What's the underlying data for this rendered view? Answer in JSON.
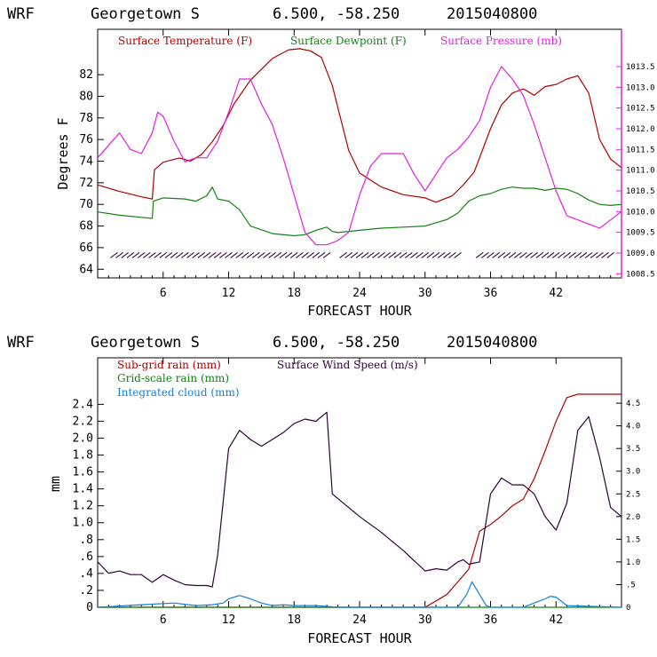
{
  "chart_data": [
    {
      "type": "line",
      "title_parts": [
        "WRF",
        "Georgetown S",
        "6.500, -58.250",
        "2015040800"
      ],
      "xlabel": "FORECAST HOUR",
      "ylabel": "Degrees F",
      "xlim": [
        0,
        48
      ],
      "xticks": [
        6,
        12,
        18,
        24,
        30,
        36,
        42
      ],
      "ylim": [
        63.2,
        86.2
      ],
      "yticks": [
        64,
        66,
        68,
        70,
        72,
        74,
        76,
        78,
        80,
        82
      ],
      "y2lim": [
        1008.4,
        1014.4
      ],
      "y2ticks": [
        1008.5,
        1009.0,
        1009.5,
        1010.0,
        1010.5,
        1011.0,
        1011.5,
        1012.0,
        1012.5,
        1013.0,
        1013.5
      ],
      "y2ticklabels": [
        "1008.5",
        "1009.0",
        "1009.5",
        "1010.0",
        "1010.5",
        "1011.0",
        "1011.5",
        "1012.0",
        "1012.5",
        "1013.0",
        "1013.5"
      ],
      "series": [
        {
          "name": "Surface Temperature (F)",
          "axis": "left",
          "color": "#b00000",
          "x": [
            0,
            2,
            4,
            5,
            5.2,
            6,
            7.5,
            8.5,
            9.5,
            10.5,
            11.5,
            12.5,
            14,
            16,
            17.5,
            18.5,
            19.5,
            20.5,
            21.5,
            22,
            23,
            24,
            26,
            28,
            30,
            31,
            32.5,
            33.5,
            34.5,
            36,
            37,
            38,
            39,
            40,
            41,
            42,
            43,
            44,
            45,
            46,
            47,
            48
          ],
          "y": [
            71.8,
            71.2,
            70.7,
            70.5,
            73.2,
            73.9,
            74.3,
            74.0,
            74.6,
            75.8,
            77.3,
            79.3,
            81.5,
            83.5,
            84.3,
            84.4,
            84.2,
            83.6,
            81.0,
            79.0,
            75.0,
            72.9,
            71.6,
            70.9,
            70.6,
            70.2,
            70.8,
            71.8,
            73.0,
            77.0,
            79.2,
            80.3,
            80.7,
            80.1,
            80.9,
            81.1,
            81.6,
            81.9,
            80.3,
            76.0,
            74.2,
            73.4
          ]
        },
        {
          "name": "Surface Dewpoint (F)",
          "axis": "left",
          "color": "#128212",
          "x": [
            0,
            2,
            4,
            5,
            5.1,
            6,
            8,
            9,
            10,
            10.5,
            11,
            12,
            13,
            14,
            16,
            18,
            19,
            20,
            21,
            21.5,
            22,
            24,
            26,
            28,
            30,
            31,
            32,
            33,
            34,
            35,
            36,
            37,
            38,
            39,
            40,
            41,
            42,
            43,
            44,
            45,
            46,
            47,
            48
          ],
          "y": [
            69.3,
            69.0,
            68.8,
            68.7,
            70.3,
            70.6,
            70.5,
            70.3,
            70.8,
            71.6,
            70.5,
            70.3,
            69.5,
            68.0,
            67.3,
            67.1,
            67.2,
            67.6,
            67.9,
            67.5,
            67.4,
            67.6,
            67.8,
            67.9,
            68.0,
            68.3,
            68.6,
            69.2,
            70.3,
            70.8,
            71.0,
            71.4,
            71.6,
            71.5,
            71.5,
            71.3,
            71.5,
            71.4,
            71.0,
            70.4,
            70.0,
            69.9,
            70.0
          ]
        },
        {
          "name": "Surface Pressure (mb)",
          "axis": "right",
          "color": "#e020e0",
          "x": [
            0,
            1,
            2,
            3,
            4,
            5,
            5.5,
            6,
            7,
            8,
            9,
            10,
            11,
            12,
            13,
            14,
            15,
            16,
            17,
            18,
            19,
            20,
            21,
            22,
            23,
            24,
            25,
            26,
            27,
            28,
            29,
            30,
            31,
            32,
            33,
            34,
            35,
            36,
            37,
            38,
            39,
            40,
            41,
            42,
            43,
            44,
            45,
            46,
            47,
            48
          ],
          "y": [
            1011.3,
            1011.6,
            1011.9,
            1011.5,
            1011.4,
            1011.9,
            1012.4,
            1012.3,
            1011.7,
            1011.2,
            1011.3,
            1011.3,
            1011.7,
            1012.4,
            1013.2,
            1013.2,
            1012.6,
            1012.1,
            1011.3,
            1010.4,
            1009.5,
            1009.2,
            1009.2,
            1009.3,
            1009.5,
            1010.4,
            1011.1,
            1011.4,
            1011.4,
            1011.4,
            1010.9,
            1010.5,
            1010.9,
            1011.3,
            1011.5,
            1011.8,
            1012.2,
            1013.0,
            1013.5,
            1013.2,
            1012.8,
            1012.1,
            1011.3,
            1010.5,
            1009.9,
            1009.8,
            1009.7,
            1009.6,
            1009.8,
            1010.0
          ]
        }
      ],
      "wind_barb_bands": [
        [
          1.5,
          21.0
        ],
        [
          22.5,
          33.0
        ],
        [
          35.0,
          47.0
        ]
      ],
      "wind_barb_y": 65.3,
      "legend": [
        "Surface Temperature (F)",
        "Surface Dewpoint (F)",
        "Surface Pressure (mb)"
      ]
    },
    {
      "type": "line",
      "title_parts": [
        "WRF",
        "Georgetown S",
        "6.500, -58.250",
        "2015040800"
      ],
      "xlabel": "FORECAST HOUR",
      "ylabel": "mm",
      "xlim": [
        0,
        48
      ],
      "xticks": [
        6,
        12,
        18,
        24,
        30,
        36,
        42
      ],
      "ylim": [
        0,
        2.95
      ],
      "yticks": [
        0,
        0.2,
        0.4,
        0.6,
        0.8,
        1.0,
        1.2,
        1.4,
        1.6,
        1.8,
        2.0,
        2.2,
        2.4
      ],
      "yticklabels": [
        "0",
        ".2",
        ".4",
        ".6",
        ".8",
        "1.0",
        "1.2",
        "1.4",
        "1.6",
        "1.8",
        "2.0",
        "2.2",
        "2.4"
      ],
      "y2lim": [
        0,
        5.5
      ],
      "y2ticks": [
        0,
        0.5,
        1.0,
        1.5,
        2.0,
        2.5,
        3.0,
        3.5,
        4.0,
        4.5
      ],
      "y2ticklabels": [
        "0",
        ".5",
        "1.0",
        "1.5",
        "2.0",
        "2.5",
        "3.0",
        "3.5",
        "4.0",
        "4.5"
      ],
      "series": [
        {
          "name": "Sub-grid rain (mm)",
          "axis": "left",
          "color": "#b00000",
          "x": [
            0,
            30,
            32,
            34,
            35,
            36,
            37,
            38,
            39,
            40,
            41,
            42,
            43,
            44,
            48
          ],
          "y": [
            0,
            0,
            0.15,
            0.45,
            0.9,
            0.98,
            1.08,
            1.2,
            1.28,
            1.52,
            1.85,
            2.2,
            2.48,
            2.52,
            2.52
          ]
        },
        {
          "name": "Surface Wind Speed (m/s)",
          "axis": "right",
          "color": "#30003a",
          "x": [
            0,
            1,
            2,
            3,
            4,
            5,
            6,
            7,
            8,
            9,
            10,
            10.5,
            11,
            12,
            13,
            14,
            15,
            16,
            17,
            18,
            19,
            20,
            20.5,
            21,
            21.5,
            22,
            24,
            26,
            28,
            30,
            31,
            32,
            33,
            33.5,
            34,
            35,
            36,
            37,
            38,
            39,
            40,
            41,
            42,
            43,
            44,
            45,
            46,
            47,
            48
          ],
          "y": [
            1.0,
            0.75,
            0.8,
            0.72,
            0.72,
            0.55,
            0.72,
            0.6,
            0.5,
            0.48,
            0.48,
            0.45,
            1.15,
            3.5,
            3.9,
            3.7,
            3.55,
            3.7,
            3.85,
            4.05,
            4.15,
            4.1,
            4.2,
            4.3,
            2.5,
            2.4,
            2.0,
            1.65,
            1.25,
            0.8,
            0.85,
            0.82,
            1.0,
            1.05,
            0.95,
            1.0,
            2.5,
            2.85,
            2.7,
            2.7,
            2.5,
            2.0,
            1.7,
            2.3,
            3.9,
            4.2,
            3.3,
            2.2,
            2.0
          ]
        },
        {
          "name": "Grid-scale rain (mm)",
          "axis": "left",
          "color": "#128212",
          "x": [
            0,
            48
          ],
          "y": [
            0,
            0
          ]
        },
        {
          "name": "Integrated cloud (mm)",
          "axis": "left",
          "color": "#1480d8",
          "x": [
            0,
            4,
            7,
            9,
            10.5,
            11.5,
            12,
            13,
            14,
            15,
            16,
            17,
            18,
            19,
            20,
            21,
            22,
            24,
            30,
            33,
            33.8,
            34.3,
            35,
            35.6,
            36,
            39,
            40,
            41,
            41.5,
            42,
            43,
            48
          ],
          "y": [
            0,
            0.03,
            0.05,
            0.02,
            0.03,
            0.05,
            0.1,
            0.14,
            0.1,
            0.05,
            0.02,
            0.03,
            0.02,
            0.02,
            0.02,
            0.01,
            0,
            0,
            0,
            0,
            0.15,
            0.3,
            0.15,
            0.02,
            0,
            0,
            0.05,
            0.1,
            0.13,
            0.12,
            0.02,
            0
          ]
        }
      ],
      "legend": [
        "Sub-grid rain (mm)",
        "Surface Wind Speed (m/s)",
        "Grid-scale rain (mm)",
        "Integrated cloud (mm)"
      ]
    }
  ]
}
